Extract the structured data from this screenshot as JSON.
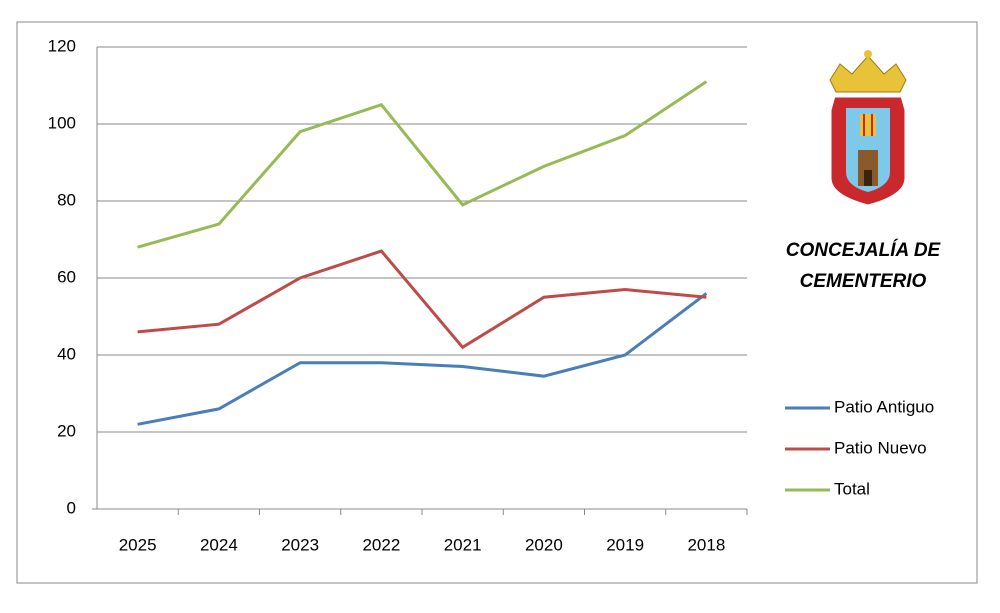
{
  "chart_data": {
    "type": "line",
    "title": [
      "CONCEJALÍA DE",
      "CEMENTERIO"
    ],
    "categories": [
      "2025",
      "2024",
      "2023",
      "2022",
      "2021",
      "2020",
      "2019",
      "2018"
    ],
    "series": [
      {
        "name": "Patio Antiguo",
        "color": "#4a7ebb",
        "values": [
          22,
          26,
          38,
          38,
          37,
          34.5,
          40,
          56
        ]
      },
      {
        "name": "Patio Nuevo",
        "color": "#be4b48",
        "values": [
          46,
          48,
          60,
          67,
          42,
          55,
          57,
          55
        ]
      },
      {
        "name": "Total",
        "color": "#98b954",
        "values": [
          68,
          74,
          98,
          105,
          79,
          89,
          97,
          111
        ]
      }
    ],
    "ylim": [
      0,
      120
    ],
    "yticks": [
      0,
      20,
      40,
      60,
      80,
      100,
      120
    ],
    "grid": true,
    "legend": "right"
  }
}
